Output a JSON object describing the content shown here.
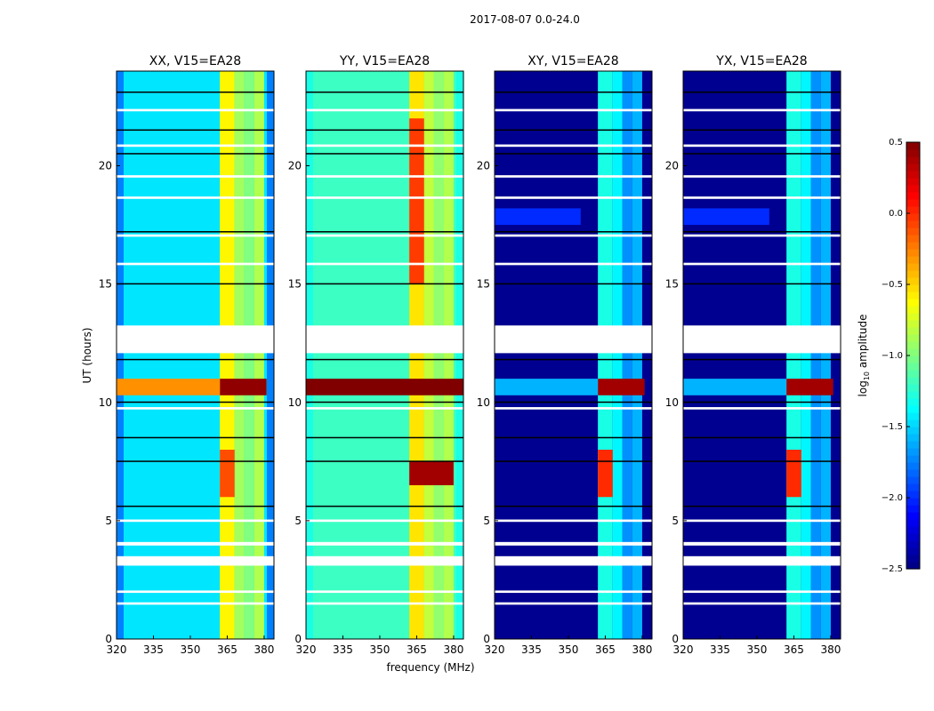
{
  "chart_data": {
    "type": "heatmap",
    "suptitle": "2017-08-07 0.0-24.0",
    "xlabel": "frequency (MHz)",
    "ylabel": "UT (hours)",
    "xlim": [
      320,
      384
    ],
    "ylim": [
      0,
      24
    ],
    "xticks": [
      "320",
      "335",
      "350",
      "365",
      "380"
    ],
    "yticks": [
      "0",
      "5",
      "10",
      "15",
      "20"
    ],
    "xtick_values": [
      320,
      335,
      350,
      365,
      380
    ],
    "ytick_values": [
      0,
      5,
      10,
      15,
      20
    ],
    "colorbar": {
      "label_main": "log",
      "label_sub": "10",
      "label_rest": " amplitude",
      "range": [
        -2.5,
        0.5
      ],
      "ticks": [
        "0.5",
        "0.0",
        "−0.5",
        "−1.0",
        "−1.5",
        "−2.0",
        "−2.5"
      ],
      "tick_values": [
        0.5,
        0.0,
        -0.5,
        -1.0,
        -1.5,
        -2.0,
        -2.5
      ],
      "colormap": "jet"
    },
    "flagged_hours": [
      [
        12.08,
        13.25
      ],
      [
        3.1,
        3.5
      ],
      [
        3.95,
        4.1
      ],
      [
        1.45,
        1.55
      ],
      [
        1.95,
        2.05
      ],
      [
        4.95,
        5.05
      ],
      [
        9.7,
        9.8
      ],
      [
        15.8,
        15.9
      ],
      [
        17.0,
        17.1
      ],
      [
        18.6,
        18.7
      ],
      [
        19.5,
        19.6
      ],
      [
        20.8,
        20.9
      ],
      [
        22.3,
        22.4
      ]
    ],
    "dark_lines_hours": [
      5.6,
      7.5,
      8.5,
      10.0,
      11.8,
      15.0,
      17.2,
      20.5,
      21.5,
      23.1
    ],
    "panels": [
      {
        "title": "XX, V15=EA28",
        "background": -1.45,
        "edge": -1.75,
        "bands": [
          {
            "f": [
              362,
              368
            ],
            "v": -0.6
          },
          {
            "f": [
              368,
              372
            ],
            "v": -0.9
          },
          {
            "f": [
              372,
              376
            ],
            "v": -1.0
          },
          {
            "f": [
              376,
              380
            ],
            "v": -0.85
          }
        ],
        "events": [
          {
            "t": [
              10.3,
              11.0
            ],
            "v": 0.45,
            "f": [
              362,
              381
            ]
          },
          {
            "t": [
              10.3,
              11.0
            ],
            "v": -0.3,
            "f": [
              320,
              362
            ]
          },
          {
            "t": [
              6.0,
              8.0
            ],
            "v": -0.1,
            "f": [
              362,
              368
            ]
          }
        ]
      },
      {
        "title": "YY, V15=EA28",
        "background": -1.2,
        "edge": -1.3,
        "bands": [
          {
            "f": [
              362,
              368
            ],
            "v": -0.55
          },
          {
            "f": [
              368,
              372
            ],
            "v": -0.8
          },
          {
            "f": [
              372,
              376
            ],
            "v": -0.95
          },
          {
            "f": [
              376,
              380
            ],
            "v": -0.85
          }
        ],
        "events": [
          {
            "t": [
              10.3,
              11.0
            ],
            "v": 0.5,
            "f": [
              320,
              384
            ]
          },
          {
            "t": [
              15.0,
              22.0
            ],
            "v": -0.05,
            "f": [
              362,
              368
            ]
          },
          {
            "t": [
              6.5,
              7.5
            ],
            "v": 0.4,
            "f": [
              362,
              380
            ]
          }
        ]
      },
      {
        "title": "XY, V15=EA28",
        "background": -2.45,
        "edge": -2.45,
        "bands": [
          {
            "f": [
              362,
              368
            ],
            "v": -1.3
          },
          {
            "f": [
              368,
              372
            ],
            "v": -1.4
          },
          {
            "f": [
              372,
              376
            ],
            "v": -1.7
          },
          {
            "f": [
              376,
              380
            ],
            "v": -1.6
          }
        ],
        "events": [
          {
            "t": [
              10.3,
              11.0
            ],
            "v": 0.4,
            "f": [
              362,
              381
            ]
          },
          {
            "t": [
              10.3,
              11.0
            ],
            "v": -1.6,
            "f": [
              320,
              362
            ]
          },
          {
            "t": [
              17.5,
              18.2
            ],
            "v": -2.0,
            "f": [
              320,
              355
            ]
          },
          {
            "t": [
              6.0,
              8.0
            ],
            "v": 0.0,
            "f": [
              362,
              368
            ]
          }
        ]
      },
      {
        "title": "YX, V15=EA28",
        "background": -2.45,
        "edge": -2.45,
        "bands": [
          {
            "f": [
              362,
              368
            ],
            "v": -1.3
          },
          {
            "f": [
              368,
              372
            ],
            "v": -1.4
          },
          {
            "f": [
              372,
              376
            ],
            "v": -1.7
          },
          {
            "f": [
              376,
              380
            ],
            "v": -1.6
          }
        ],
        "events": [
          {
            "t": [
              10.3,
              11.0
            ],
            "v": 0.4,
            "f": [
              362,
              381
            ]
          },
          {
            "t": [
              10.3,
              11.0
            ],
            "v": -1.6,
            "f": [
              320,
              362
            ]
          },
          {
            "t": [
              17.5,
              18.2
            ],
            "v": -2.0,
            "f": [
              320,
              355
            ]
          },
          {
            "t": [
              6.0,
              8.0
            ],
            "v": 0.0,
            "f": [
              362,
              368
            ]
          }
        ]
      }
    ]
  }
}
